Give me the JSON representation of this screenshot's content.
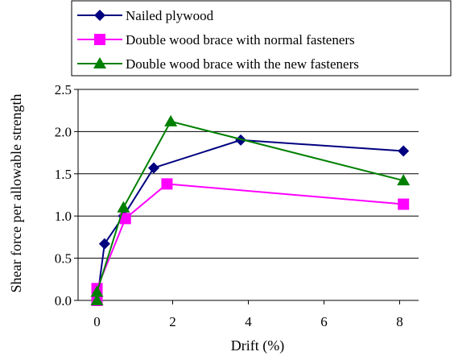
{
  "chart_data": {
    "type": "line",
    "title": "",
    "xlabel": "Drift (%)",
    "ylabel": "Shear force per allowable strength",
    "xlim": [
      -0.5,
      8.5
    ],
    "ylim": [
      0,
      2.5
    ],
    "xticks": [
      "0",
      "2",
      "4",
      "6",
      "8"
    ],
    "yticks": [
      "0.0",
      "0.5",
      "1.0",
      "1.5",
      "2.0",
      "2.5"
    ],
    "grid": "horizontal",
    "legend_position": "top",
    "series": [
      {
        "name": "Nailed plywood",
        "color": "#000080",
        "marker": "diamond",
        "x": [
          0,
          0.2,
          0.7,
          1.5,
          3.8,
          8.1
        ],
        "y": [
          0.0,
          0.67,
          1.0,
          1.57,
          1.9,
          1.77
        ]
      },
      {
        "name": "Double wood brace with normal fasteners",
        "color": "#ff00ff",
        "marker": "square",
        "x": [
          0,
          0,
          0.75,
          1.85,
          8.1
        ],
        "y": [
          0.0,
          0.14,
          0.97,
          1.38,
          1.14
        ]
      },
      {
        "name": "Double wood brace with the new fasteners",
        "color": "#008000",
        "marker": "triangle",
        "x": [
          0,
          0,
          0.7,
          1.95,
          8.1
        ],
        "y": [
          0.0,
          0.1,
          1.1,
          2.12,
          1.42
        ]
      }
    ]
  }
}
